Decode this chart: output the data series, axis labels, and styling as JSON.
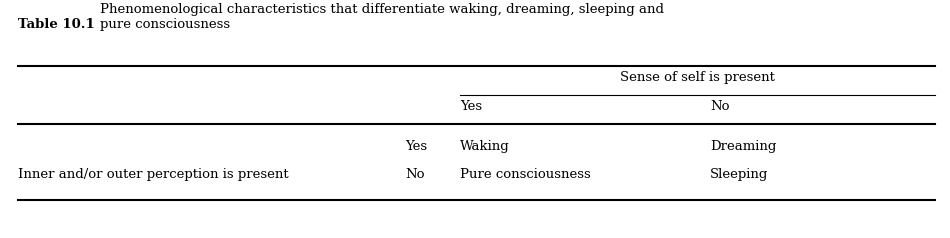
{
  "title_bold": "Table 10.1",
  "title_normal": "Phenomenological characteristics that differentiate waking, dreaming, sleeping and\npure consciousness",
  "col_header_span": "Sense of self is present",
  "col_yes": "Yes",
  "col_no": "No",
  "row_label": "Inner and/or outer perception is present",
  "row_yes": "Yes",
  "row_no": "No",
  "cell_waking": "Waking",
  "cell_dreaming": "Dreaming",
  "cell_pure": "Pure consciousness",
  "cell_sleeping": "Sleeping",
  "bg_color": "#ffffff",
  "text_color": "#000000",
  "font_size": 9.5,
  "title_font_size": 9.5
}
